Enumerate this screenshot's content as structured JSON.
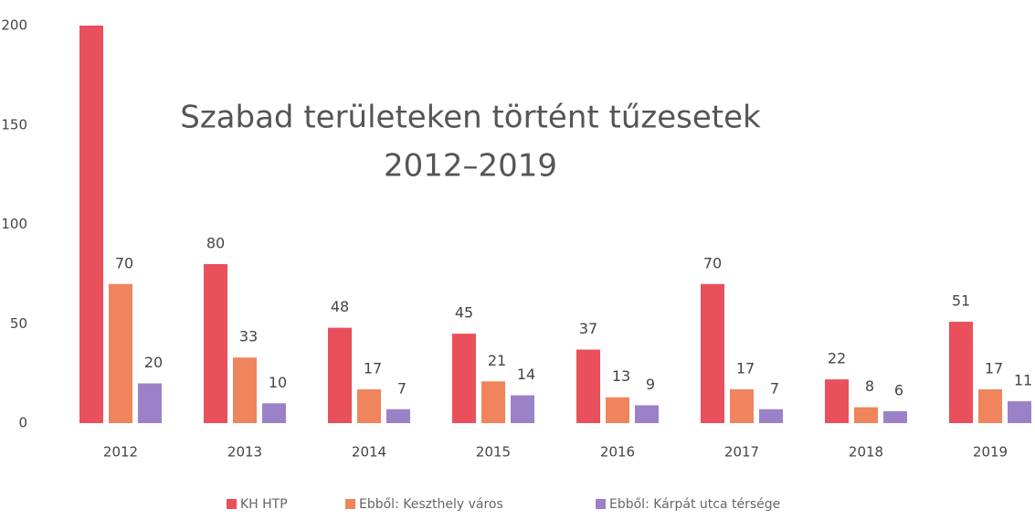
{
  "chart_data": {
    "type": "bar",
    "title": "Szabad területeken történt tűzesetek",
    "subtitle": "2012–2019",
    "categories": [
      "2012",
      "2013",
      "2014",
      "2015",
      "2016",
      "2017",
      "2018",
      "2019"
    ],
    "series": [
      {
        "name": "KH HTP",
        "color": "#e8505b",
        "values": [
          200,
          80,
          48,
          45,
          37,
          70,
          22,
          51
        ],
        "value_labels": [
          null,
          "80",
          "48",
          "45",
          "37",
          "70",
          "22",
          "51"
        ]
      },
      {
        "name": "Ebből: Keszthely város",
        "color": "#f0845c",
        "values": [
          70,
          33,
          17,
          21,
          13,
          17,
          8,
          17
        ]
      },
      {
        "name": "Ebből: Kárpát utca térsége",
        "color": "#9b82c8",
        "values": [
          20,
          10,
          7,
          14,
          9,
          7,
          6,
          11
        ]
      }
    ],
    "ylim": [
      0,
      200
    ],
    "yticks": [
      0,
      50,
      100,
      150,
      200
    ],
    "grid": false,
    "legend": "bottom"
  }
}
